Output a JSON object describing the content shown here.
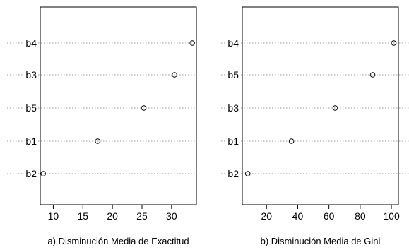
{
  "chart_data": [
    {
      "type": "scatter",
      "subtype": "dotchart",
      "xlabel": "a) Disminución Media de Exactitud",
      "ylabel": "",
      "xlim": [
        7.8,
        34.2
      ],
      "xticks": [
        10,
        15,
        20,
        25,
        30
      ],
      "grid": "dotted horizontal",
      "categories": [
        "b4",
        "b3",
        "b5",
        "b1",
        "b2"
      ],
      "values": [
        33.5,
        30.5,
        25.3,
        17.5,
        8.3
      ]
    },
    {
      "type": "scatter",
      "subtype": "dotchart",
      "xlabel": "b) Disminución Media de Gini",
      "ylabel": "",
      "xlim": [
        4.5,
        104.5
      ],
      "xticks": [
        20,
        40,
        60,
        80,
        100
      ],
      "grid": "dotted horizontal",
      "categories": [
        "b4",
        "b5",
        "b3",
        "b1",
        "b2"
      ],
      "values": [
        101.5,
        88,
        64,
        36,
        8
      ]
    }
  ]
}
